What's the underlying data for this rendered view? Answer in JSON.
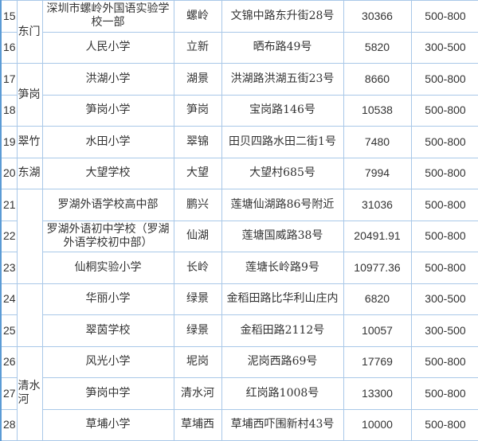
{
  "rows": [
    {
      "no": "15",
      "district": "东门",
      "name": "深圳市螺岭外国语实验学校一部",
      "area": "螺岭",
      "address": "文锦中路东升街28号",
      "size": "30366",
      "price": "500-800"
    },
    {
      "no": "16",
      "name": "人民小学",
      "area": "立新",
      "address": "晒布路49号",
      "size": "5820",
      "price": "300-500"
    },
    {
      "no": "17",
      "district": "笋岗",
      "name": "洪湖小学",
      "area": "湖景",
      "address": "洪湖路洪湖五街23号",
      "size": "8660",
      "price": "500-800"
    },
    {
      "no": "18",
      "name": "笋岗小学",
      "area": "笋岗",
      "address": "宝岗路146号",
      "size": "10538",
      "price": "500-800"
    },
    {
      "no": "19",
      "district": "翠竹",
      "name": "水田小学",
      "area": "翠锦",
      "address": "田贝四路水田二街1号",
      "size": "7480",
      "price": "500-800"
    },
    {
      "no": "20",
      "district": "东湖",
      "name": "大望学校",
      "area": "大望",
      "address": "大望村685号",
      "size": "7994",
      "price": "500-800"
    },
    {
      "no": "21",
      "district": "",
      "name": "罗湖外语学校高中部",
      "area": "鹏兴",
      "address": "莲塘仙湖路86号附近",
      "size": "31036",
      "price": "500-800"
    },
    {
      "no": "22",
      "name": "罗湖外语初中学校（罗湖外语学校初中部）",
      "area": "仙湖",
      "address": "莲塘国威路38号",
      "size": "20491.91",
      "price": "500-800"
    },
    {
      "no": "23",
      "name": "仙桐实验小学",
      "area": "长岭",
      "address": "莲塘长岭路9号",
      "size": "10977.36",
      "price": "500-800"
    },
    {
      "no": "24",
      "district": "",
      "name": "华丽小学",
      "area": "绿景",
      "address": "金稻田路比华利山庄内",
      "size": "6820",
      "price": "300-500"
    },
    {
      "no": "25",
      "name": "翠茵学校",
      "area": "绿景",
      "address": "金稻田路2112号",
      "size": "10057",
      "price": "300-500"
    },
    {
      "no": "26",
      "district": "清水河",
      "name": "风光小学",
      "area": "坭岗",
      "address": "泥岗西路69号",
      "size": "17769",
      "price": "500-800"
    },
    {
      "no": "27",
      "name": "笋岗中学",
      "area": "清水河",
      "address": "红岗路1008号",
      "size": "13300",
      "price": "500-800"
    },
    {
      "no": "28",
      "name": "草埔小学",
      "area": "草埔西",
      "address": "草埔西吓围新村43号",
      "size": "10000",
      "price": "500-800"
    }
  ]
}
